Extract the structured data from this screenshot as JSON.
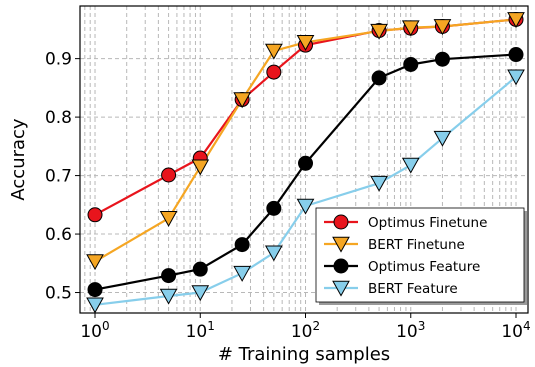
{
  "chart_data": {
    "type": "line",
    "xlabel": "# Training samples",
    "ylabel": "Accuracy",
    "xscale": "log",
    "xlim": [
      0.72,
      13000
    ],
    "ylim": [
      0.465,
      0.99
    ],
    "x_ticks": [
      {
        "value": 1,
        "base": "10",
        "exp": "0"
      },
      {
        "value": 10,
        "base": "10",
        "exp": "1"
      },
      {
        "value": 100,
        "base": "10",
        "exp": "2"
      },
      {
        "value": 1000,
        "base": "10",
        "exp": "3"
      },
      {
        "value": 10000,
        "base": "10",
        "exp": "4"
      }
    ],
    "y_ticks": [
      {
        "value": 0.5,
        "label": "0.5"
      },
      {
        "value": 0.6,
        "label": "0.6"
      },
      {
        "value": 0.7,
        "label": "0.7"
      },
      {
        "value": 0.8,
        "label": "0.8"
      },
      {
        "value": 0.9,
        "label": "0.9"
      }
    ],
    "grid": true,
    "legend_position": "lower-right",
    "x": [
      1,
      5,
      10,
      25,
      50,
      100,
      500,
      1000,
      2000,
      10000
    ],
    "series": [
      {
        "name": "Optimus Finetune",
        "line_color": "#e8141c",
        "marker": "circle",
        "marker_color": "#e8141c",
        "values": [
          0.633,
          0.701,
          0.73,
          0.83,
          0.877,
          0.923,
          0.948,
          0.952,
          0.955,
          0.967
        ]
      },
      {
        "name": "BERT Finetune",
        "line_color": "#f5a623",
        "marker": "triangle-down",
        "marker_color": "#f5a623",
        "values": [
          0.553,
          0.627,
          0.715,
          0.83,
          0.913,
          0.928,
          0.947,
          0.953,
          0.955,
          0.967
        ]
      },
      {
        "name": "Optimus Feature",
        "line_color": "#000000",
        "marker": "circle",
        "marker_color": "#000000",
        "values": [
          0.505,
          0.529,
          0.54,
          0.582,
          0.644,
          0.721,
          0.867,
          0.89,
          0.899,
          0.907
        ]
      },
      {
        "name": "BERT Feature",
        "line_color": "#87ceeb",
        "marker": "triangle-down",
        "marker_color": "#87ceeb",
        "values": [
          0.479,
          0.494,
          0.5,
          0.533,
          0.568,
          0.648,
          0.687,
          0.718,
          0.764,
          0.869
        ]
      }
    ]
  }
}
